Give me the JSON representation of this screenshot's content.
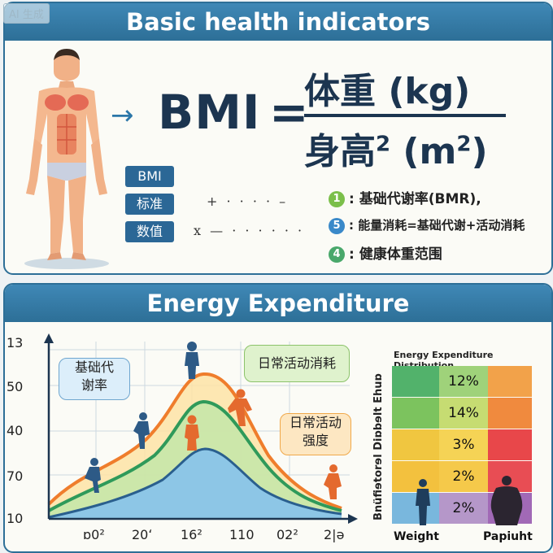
{
  "badge": "AI 生成",
  "top": {
    "title": "Basic health indicators",
    "arrow": "→",
    "formula": {
      "bmi": "BMI",
      "equals": "=",
      "numerator": "体重 (kg)",
      "denominator": "身高",
      "denominator_sup": "2",
      "denominator_unit": "(m",
      "denominator_unit_sup": "2",
      "denominator_close": ")"
    },
    "tags": [
      "BMI",
      "标准",
      "数值"
    ],
    "dots_row1": "+ · · · · –",
    "dots_row2": "x — · · · · · ·",
    "legend": [
      {
        "num": "1",
        "color": "#7bbf4a",
        "text": ": 基础代谢率(BMR),"
      },
      {
        "num": "5",
        "color": "#3a89c9",
        "text": ": 能量消耗=基础代谢+活动消耗"
      },
      {
        "num": "4",
        "color": "#49a86b",
        "text": ": 健康体重范围"
      }
    ],
    "colors": {
      "header": "#2d6f97",
      "tag": "#2b6796",
      "text": "#1c3550"
    }
  },
  "bottom": {
    "title": "Energy Expenditure",
    "y_labels": [
      "13",
      "50",
      "40",
      "70",
      "10"
    ],
    "x_labels": [
      "ɒ0²",
      "20ʻ",
      "16²",
      "110",
      "02²",
      "2|ə"
    ],
    "bubbles": {
      "bmr": "基础代\n谢率",
      "daily": "日常活动消耗",
      "intensity": "日常活动\n强度"
    },
    "distribution": {
      "title": "Energy Expenditure Distribution",
      "vertical_label": "Bnüfiɘtorɘl Diɒbɘlt Ehuɒ",
      "rows": [
        {
          "value": "12%",
          "colors": [
            "#52b26b",
            "#9fd27a",
            "#f2a24a"
          ]
        },
        {
          "value": "14%",
          "colors": [
            "#7cc35e",
            "#c6dc72",
            "#f08a3e"
          ]
        },
        {
          "value": "3%",
          "colors": [
            "#f0c640",
            "#f5d355",
            "#e8474a"
          ]
        },
        {
          "value": "2%",
          "colors": [
            "#f3c13e",
            "#f5c94a",
            "#e84d54"
          ]
        },
        {
          "value": "2%",
          "colors": [
            "#79b7dd",
            "#b597c9",
            "#a169b6"
          ]
        }
      ],
      "footer_left": "Weight",
      "footer_right": "Papiuht"
    }
  }
}
